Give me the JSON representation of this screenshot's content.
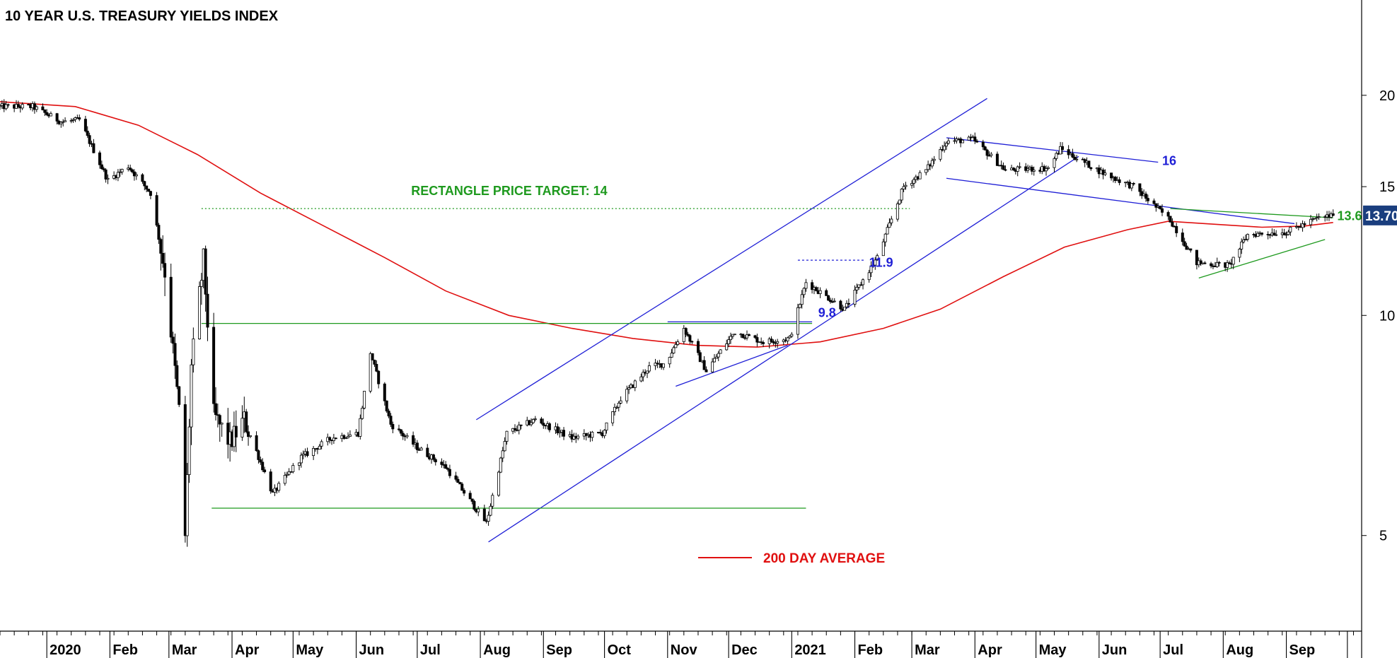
{
  "chart_data": {
    "type": "candlestick",
    "title": "10 YEAR U.S. TREASURY YIELDS INDEX",
    "y_scale": "log",
    "ylim": [
      3.7,
      27
    ],
    "y_ticks": [
      {
        "value": 20,
        "label": "20"
      },
      {
        "value": 15,
        "label": "15"
      },
      {
        "value": 10,
        "label": "10"
      },
      {
        "value": 5,
        "label": "5"
      }
    ],
    "x_labels": [
      "2020",
      "Feb",
      "Mar",
      "Apr",
      "May",
      "Jun",
      "Jul",
      "Aug",
      "Sep",
      "Oct",
      "Nov",
      "Dec",
      "2021",
      "Feb",
      "Mar",
      "Apr",
      "May",
      "Jun",
      "Jul",
      "Aug",
      "Sep"
    ],
    "x_range": [
      "2019-12-09",
      "2021-10-08"
    ],
    "price_path": [
      [
        "2019-12-09",
        19.3
      ],
      [
        "2019-12-25",
        19.3
      ],
      [
        "2020-01-08",
        18.4
      ],
      [
        "2020-01-17",
        18.5
      ],
      [
        "2020-01-31",
        15.3
      ],
      [
        "2020-02-10",
        16.0
      ],
      [
        "2020-02-21",
        14.7
      ],
      [
        "2020-02-28",
        11.5
      ],
      [
        "2020-03-06",
        7.4
      ],
      [
        "2020-03-09",
        5.0
      ],
      [
        "2020-03-12",
        8.5
      ],
      [
        "2020-03-18",
        11.9
      ],
      [
        "2020-03-23",
        7.3
      ],
      [
        "2020-03-31",
        6.7
      ],
      [
        "2020-04-07",
        7.2
      ],
      [
        "2020-04-21",
        5.7
      ],
      [
        "2020-05-05",
        6.4
      ],
      [
        "2020-05-20",
        6.8
      ],
      [
        "2020-06-02",
        6.9
      ],
      [
        "2020-06-08",
        8.9
      ],
      [
        "2020-06-18",
        7.1
      ],
      [
        "2020-07-01",
        6.6
      ],
      [
        "2020-07-15",
        6.2
      ],
      [
        "2020-08-04",
        5.2
      ],
      [
        "2020-08-14",
        6.9
      ],
      [
        "2020-08-28",
        7.2
      ],
      [
        "2020-09-15",
        6.8
      ],
      [
        "2020-09-30",
        6.9
      ],
      [
        "2020-10-09",
        7.7
      ],
      [
        "2020-10-23",
        8.5
      ],
      [
        "2020-10-31",
        8.6
      ],
      [
        "2020-11-09",
        9.6
      ],
      [
        "2020-11-20",
        8.4
      ],
      [
        "2020-12-04",
        9.5
      ],
      [
        "2020-12-18",
        9.2
      ],
      [
        "2020-12-31",
        9.3
      ],
      [
        "2021-01-08",
        11.1
      ],
      [
        "2021-01-27",
        10.2
      ],
      [
        "2021-02-12",
        12.0
      ],
      [
        "2021-02-25",
        15.0
      ],
      [
        "2021-03-08",
        15.8
      ],
      [
        "2021-03-18",
        17.3
      ],
      [
        "2021-03-31",
        17.4
      ],
      [
        "2021-04-16",
        15.8
      ],
      [
        "2021-05-07",
        15.9
      ],
      [
        "2021-05-13",
        16.9
      ],
      [
        "2021-06-04",
        15.6
      ],
      [
        "2021-06-18",
        15.0
      ],
      [
        "2021-07-06",
        13.5
      ],
      [
        "2021-07-19",
        11.8
      ],
      [
        "2021-08-04",
        11.7
      ],
      [
        "2021-08-13",
        12.9
      ],
      [
        "2021-09-01",
        13.0
      ],
      [
        "2021-09-17",
        13.6
      ],
      [
        "2021-09-24",
        13.7
      ]
    ],
    "ma200_path": [
      [
        "2019-12-09",
        19.6
      ],
      [
        "2020-01-15",
        19.3
      ],
      [
        "2020-02-15",
        18.2
      ],
      [
        "2020-03-15",
        16.6
      ],
      [
        "2020-04-15",
        14.7
      ],
      [
        "2020-05-15",
        13.3
      ],
      [
        "2020-06-15",
        12.0
      ],
      [
        "2020-07-15",
        10.8
      ],
      [
        "2020-08-15",
        10.0
      ],
      [
        "2020-09-15",
        9.6
      ],
      [
        "2020-10-15",
        9.3
      ],
      [
        "2020-11-15",
        9.1
      ],
      [
        "2020-12-15",
        9.05
      ],
      [
        "2021-01-15",
        9.2
      ],
      [
        "2021-02-15",
        9.6
      ],
      [
        "2021-03-15",
        10.2
      ],
      [
        "2021-04-15",
        11.3
      ],
      [
        "2021-05-15",
        12.4
      ],
      [
        "2021-06-15",
        13.1
      ],
      [
        "2021-07-05",
        13.45
      ],
      [
        "2021-08-01",
        13.3
      ],
      [
        "2021-08-20",
        13.2
      ],
      [
        "2021-09-10",
        13.25
      ],
      [
        "2021-09-24",
        13.4
      ]
    ],
    "trendlines": [
      {
        "name": "upper-channel",
        "color": "#1f1fd6",
        "points": [
          [
            "2020-07-30",
            7.2
          ],
          [
            "2021-04-07",
            19.8
          ]
        ]
      },
      {
        "name": "lower-channel",
        "color": "#1f1fd6",
        "points": [
          [
            "2020-08-05",
            4.9
          ],
          [
            "2021-05-22",
            16.5
          ]
        ]
      },
      {
        "name": "broadening-top",
        "color": "#1f1fd6",
        "points": [
          [
            "2021-03-18",
            17.5
          ],
          [
            "2021-06-30",
            16.2
          ]
        ]
      },
      {
        "name": "broadening-bottom",
        "color": "#1f1fd6",
        "points": [
          [
            "2021-03-18",
            15.4
          ],
          [
            "2021-09-05",
            13.35
          ]
        ]
      },
      {
        "name": "rect-top",
        "color": "#1f1fd6",
        "points": [
          [
            "2020-11-01",
            9.8
          ],
          [
            "2021-01-11",
            9.8
          ]
        ]
      },
      {
        "name": "rect-bottom-rising",
        "color": "#1f1fd6",
        "points": [
          [
            "2020-11-05",
            8.0
          ],
          [
            "2020-12-30",
            9.1
          ]
        ]
      },
      {
        "name": "flag-top",
        "color": "#1f1fd6",
        "points": [
          [
            "2021-01-04",
            11.9
          ],
          [
            "2021-02-06",
            11.9
          ]
        ],
        "dashed": true
      },
      {
        "name": "triangle-top",
        "color": "#1f9a1f",
        "points": [
          [
            "2021-07-06",
            14.0
          ],
          [
            "2021-09-24",
            13.6
          ]
        ]
      },
      {
        "name": "triangle-bottom",
        "color": "#1f9a1f",
        "points": [
          [
            "2021-07-20",
            11.25
          ],
          [
            "2021-09-20",
            12.7
          ]
        ]
      },
      {
        "name": "resistance",
        "color": "#1f9a1f",
        "points": [
          [
            "2020-03-17",
            9.75
          ],
          [
            "2021-01-11",
            9.75
          ]
        ]
      },
      {
        "name": "support",
        "color": "#1f9a1f",
        "points": [
          [
            "2020-03-22",
            5.45
          ],
          [
            "2021-01-08",
            5.45
          ]
        ]
      },
      {
        "name": "target",
        "color": "#1f9a1f",
        "points": [
          [
            "2020-03-17",
            14.0
          ],
          [
            "2021-02-28",
            14.0
          ]
        ],
        "dotted": true
      }
    ],
    "annotations": [
      {
        "text": "RECTANGLE PRICE TARGET: 14",
        "color": "green",
        "x": "2020-06-28",
        "y": 14.6
      },
      {
        "text": "11.9",
        "color": "blue",
        "x": "2021-02-08",
        "y": 11.65
      },
      {
        "text": "9.8",
        "color": "blue",
        "x": "2021-01-14",
        "y": 9.95
      },
      {
        "text": "16",
        "color": "blue",
        "x": "2021-07-02",
        "y": 16.05
      },
      {
        "text": "13.6",
        "color": "green",
        "x": "2021-09-26",
        "y": 13.5
      }
    ],
    "legend": {
      "label": "200 DAY AVERAGE",
      "color": "#e01010",
      "position": "bottom-center"
    },
    "last_price": {
      "value": 13.7,
      "label": "13.70",
      "color": "#1a3e7e"
    },
    "colors": {
      "candle": "#000000",
      "ma": "#e01010",
      "blue": "#1f1fd6",
      "green": "#1f9a1f"
    },
    "grid": false
  }
}
